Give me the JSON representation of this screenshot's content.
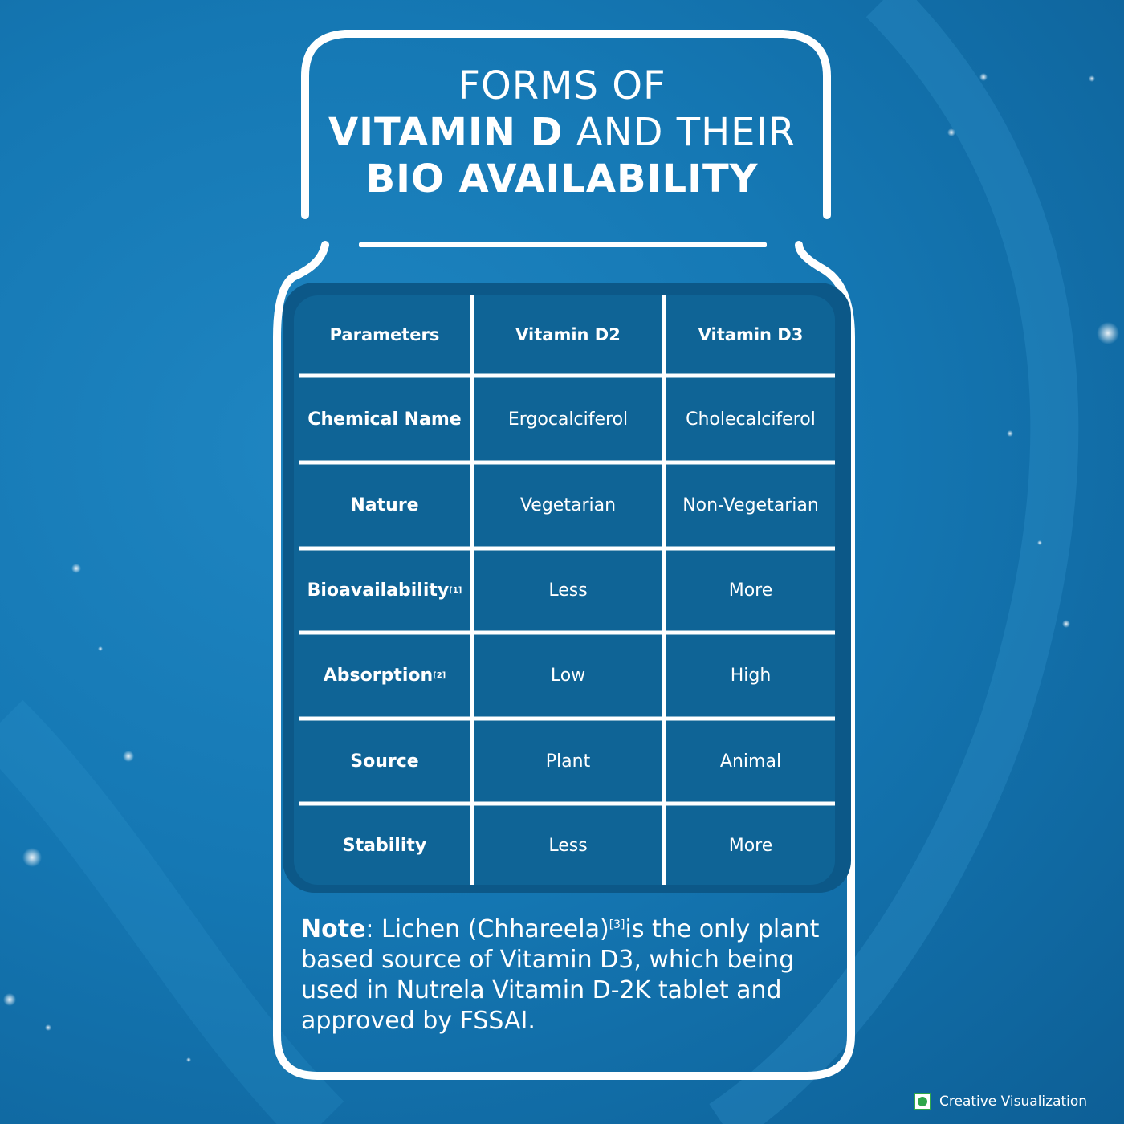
{
  "title": {
    "line1": "FORMS OF",
    "line2_bold": "VITAMIN D",
    "line2_thin": " AND THEIR",
    "line3": "BIO AVAILABILITY"
  },
  "table": {
    "headers": [
      "Parameters",
      "Vitamin D2",
      "Vitamin D3"
    ],
    "rows": [
      {
        "param": "Chemical Name",
        "sup": "",
        "d2": "Ergocalciferol",
        "d3": "Cholecalciferol"
      },
      {
        "param": "Nature",
        "sup": "",
        "d2": "Vegetarian",
        "d3": "Non-Vegetarian"
      },
      {
        "param": "Bioavailability",
        "sup": "[1]",
        "d2": "Less",
        "d3": "More"
      },
      {
        "param": "Absorption",
        "sup": "[2]",
        "d2": "Low",
        "d3": "High"
      },
      {
        "param": "Source",
        "sup": "",
        "d2": "Plant",
        "d3": "Animal"
      },
      {
        "param": "Stability",
        "sup": "",
        "d2": "Less",
        "d3": "More"
      }
    ]
  },
  "note": {
    "label": "Note",
    "text_before": ": Lichen (Chhareela)",
    "sup": "[3]",
    "text_after": "is the only plant based source of Vitamin D3, which being used in Nutrela Vitamin D-2K tablet and approved by FSSAI."
  },
  "footer": {
    "label": "Creative Visualization",
    "veg_mark_icon": "veg-symbol-icon"
  },
  "colors": {
    "background": "#1578b4",
    "table_outer": "#0c5888",
    "table_inner": "#0f6496",
    "veg_green": "#2ea64a"
  }
}
